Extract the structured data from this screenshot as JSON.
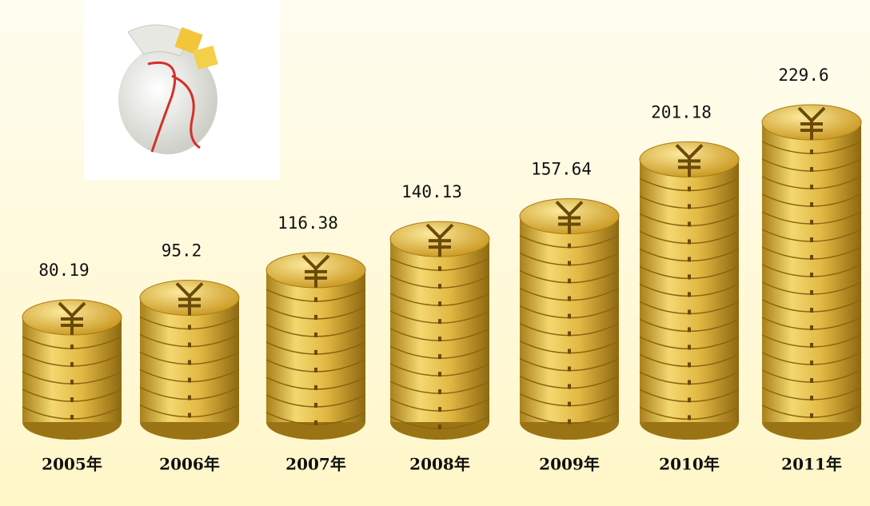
{
  "chart_data": {
    "type": "coin-stack",
    "categories": [
      "2005年",
      "2006年",
      "2007年",
      "2008年",
      "2009年",
      "2010年",
      "2011年"
    ],
    "values": [
      80.19,
      95.2,
      116.38,
      140.13,
      157.64,
      201.18,
      229.6
    ],
    "color": "#d4a72c"
  }
}
